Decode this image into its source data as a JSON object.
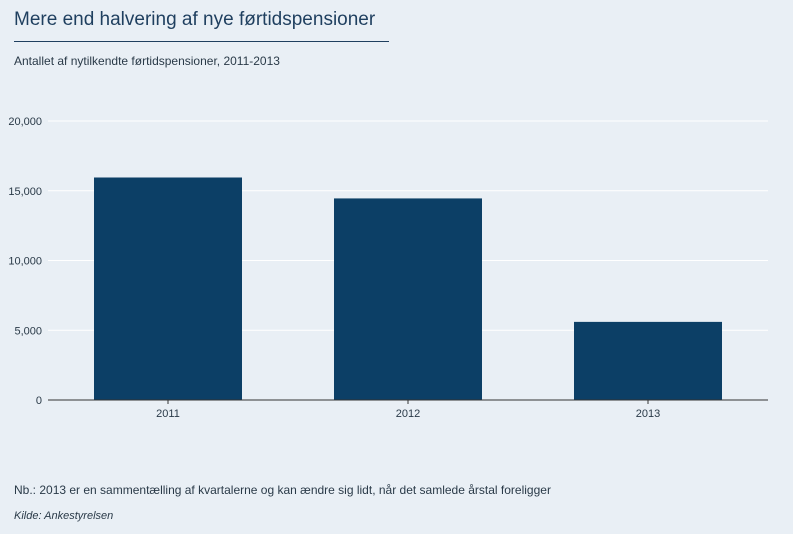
{
  "chart_data": {
    "type": "bar",
    "title": "Mere end halvering af nye førtidspensioner",
    "subtitle": "Antallet af nytilkendte førtidspensioner, 2011-2013",
    "categories": [
      "2011",
      "2012",
      "2013"
    ],
    "values": [
      15950,
      14450,
      5600
    ],
    "ylim": [
      0,
      20000
    ],
    "yticks": [
      0,
      5000,
      10000,
      15000,
      20000
    ],
    "ytick_labels": [
      "0",
      "5,000",
      "10,000",
      "15,000",
      "20,000"
    ],
    "xlabel": "",
    "ylabel": "",
    "grid": true,
    "bar_color": "#0c3f66",
    "grid_color": "#ffffff"
  },
  "note": "Nb.: 2013 er en sammentælling af kvartalerne og kan ændre sig lidt, når det samlede årstal foreligger",
  "source": "Kilde: Ankestyrelsen"
}
